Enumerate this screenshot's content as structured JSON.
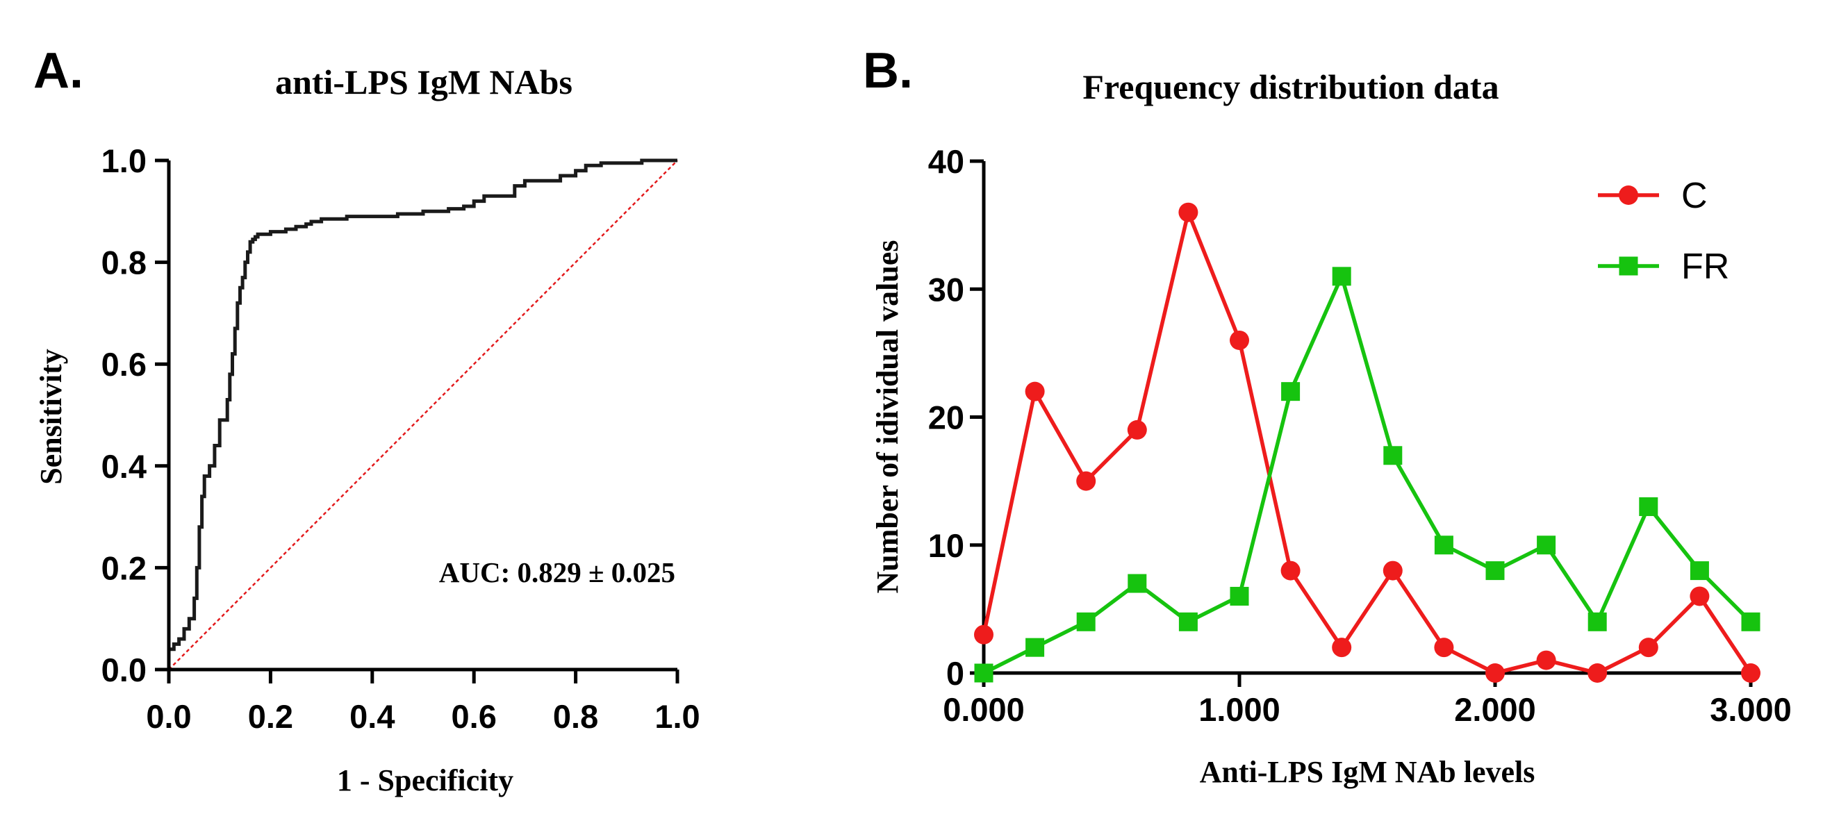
{
  "chart_data": [
    {
      "panel": "A.",
      "type": "line",
      "title": "anti-LPS IgM NAbs",
      "xlabel": "1 - Specificity",
      "ylabel": "Sensitivity",
      "xlim": [
        0,
        1
      ],
      "ylim": [
        0,
        1
      ],
      "xticks": [
        "0.0",
        "0.2",
        "0.4",
        "0.6",
        "0.8",
        "1.0"
      ],
      "yticks": [
        "0.0",
        "0.2",
        "0.4",
        "0.6",
        "0.8",
        "1.0"
      ],
      "annotation": "AUC: 0.829 ± 0.025",
      "colors": {
        "roc": "#1a1a1a",
        "reference": "#e31a1c"
      },
      "series": [
        {
          "name": "ROC",
          "x": [
            0,
            0,
            0.01,
            0.01,
            0.02,
            0.02,
            0.03,
            0.03,
            0.04,
            0.04,
            0.05,
            0.05,
            0.055,
            0.055,
            0.06,
            0.06,
            0.065,
            0.065,
            0.07,
            0.07,
            0.08,
            0.08,
            0.09,
            0.09,
            0.1,
            0.1,
            0.115,
            0.115,
            0.12,
            0.12,
            0.125,
            0.125,
            0.13,
            0.13,
            0.135,
            0.135,
            0.14,
            0.14,
            0.145,
            0.145,
            0.15,
            0.15,
            0.155,
            0.155,
            0.16,
            0.16,
            0.165,
            0.165,
            0.17,
            0.17,
            0.175,
            0.175,
            0.18,
            0.18,
            0.2,
            0.2,
            0.23,
            0.23,
            0.25,
            0.25,
            0.27,
            0.27,
            0.28,
            0.28,
            0.3,
            0.3,
            0.35,
            0.35,
            0.45,
            0.45,
            0.5,
            0.5,
            0.55,
            0.55,
            0.58,
            0.58,
            0.6,
            0.6,
            0.62,
            0.62,
            0.68,
            0.68,
            0.7,
            0.7,
            0.77,
            0.77,
            0.8,
            0.8,
            0.82,
            0.82,
            0.85,
            0.85,
            0.93,
            0.93,
            0.97,
            0.97,
            1.0,
            1.0
          ],
          "y": [
            0,
            0.04,
            0.04,
            0.05,
            0.05,
            0.06,
            0.06,
            0.08,
            0.08,
            0.1,
            0.1,
            0.14,
            0.14,
            0.2,
            0.2,
            0.28,
            0.28,
            0.34,
            0.34,
            0.38,
            0.38,
            0.4,
            0.4,
            0.44,
            0.44,
            0.49,
            0.49,
            0.53,
            0.53,
            0.58,
            0.58,
            0.62,
            0.62,
            0.67,
            0.67,
            0.72,
            0.72,
            0.75,
            0.75,
            0.77,
            0.77,
            0.8,
            0.8,
            0.82,
            0.82,
            0.84,
            0.84,
            0.845,
            0.845,
            0.85,
            0.85,
            0.855,
            0.855,
            0.855,
            0.855,
            0.86,
            0.86,
            0.865,
            0.865,
            0.87,
            0.87,
            0.875,
            0.875,
            0.88,
            0.88,
            0.885,
            0.885,
            0.89,
            0.89,
            0.895,
            0.895,
            0.9,
            0.9,
            0.905,
            0.905,
            0.91,
            0.91,
            0.92,
            0.92,
            0.93,
            0.93,
            0.95,
            0.95,
            0.96,
            0.96,
            0.97,
            0.97,
            0.98,
            0.98,
            0.99,
            0.99,
            0.995,
            0.995,
            1.0,
            1.0,
            1.0,
            1.0,
            1.0
          ]
        },
        {
          "name": "Reference",
          "x": [
            0,
            1
          ],
          "y": [
            0,
            1
          ]
        }
      ]
    },
    {
      "panel": "B.",
      "type": "line",
      "title": "Frequency distribution data",
      "xlabel": "Anti-LPS IgM NAb levels",
      "ylabel": "Number of idividual values",
      "xlim": [
        0,
        3
      ],
      "ylim": [
        0,
        40
      ],
      "xticks": [
        "0.000",
        "1.000",
        "2.000",
        "3.000"
      ],
      "yticks": [
        "0",
        "10",
        "20",
        "30",
        "40"
      ],
      "legend_position": "top-right",
      "x": [
        0,
        0.2,
        0.4,
        0.6,
        0.8,
        1.0,
        1.2,
        1.4,
        1.6,
        1.8,
        2.0,
        2.2,
        2.4,
        2.6,
        2.8,
        3.0
      ],
      "series": [
        {
          "name": "C",
          "marker": "circle",
          "color": "#ee1c1c",
          "values": [
            3,
            22,
            15,
            19,
            36,
            26,
            8,
            2,
            8,
            2,
            0,
            1,
            0,
            2,
            6,
            0
          ]
        },
        {
          "name": "FR",
          "marker": "square",
          "color": "#16c30f",
          "values": [
            0,
            2,
            4,
            7,
            4,
            6,
            22,
            31,
            17,
            10,
            8,
            10,
            4,
            13,
            8,
            4
          ]
        }
      ]
    }
  ]
}
